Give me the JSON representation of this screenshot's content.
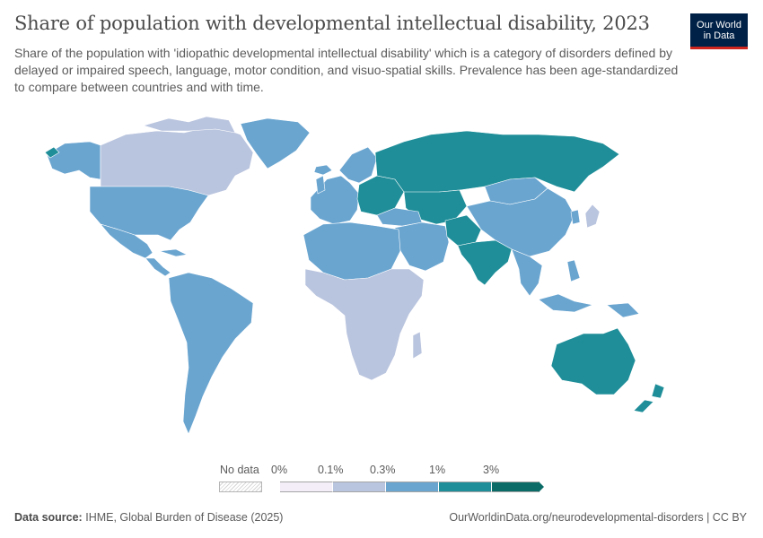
{
  "header": {
    "title": "Share of population with developmental intellectual disability, 2023",
    "subtitle": "Share of the population with 'idiopathic developmental intellectual disability' which is a category of disorders defined by delayed or impaired speech, language, motor condition, and visuo-spatial skills. Prevalence has been age-standardized to compare between countries and with time."
  },
  "logo": {
    "line1": "Our World",
    "line2": "in Data"
  },
  "legend": {
    "no_data_label": "No data",
    "ticks": [
      "0%",
      "0.1%",
      "0.3%",
      "1%",
      "3%"
    ],
    "colors": [
      "#f3eef8",
      "#b9c4de",
      "#6aa5d0",
      "#1f8e99",
      "#0b6b66"
    ]
  },
  "map_data": {
    "regions": [
      {
        "name": "Canada",
        "bin": "0.1-0.3%"
      },
      {
        "name": "United States",
        "bin": "0.3-1%"
      },
      {
        "name": "Greenland",
        "bin": "0.3-1%"
      },
      {
        "name": "Mexico",
        "bin": "0.3-1%"
      },
      {
        "name": "South America",
        "bin": "0.3-1%"
      },
      {
        "name": "Western Europe",
        "bin": "0.3-1%"
      },
      {
        "name": "Eastern Europe",
        "bin": "1-3%"
      },
      {
        "name": "Russia",
        "bin": "1-3%"
      },
      {
        "name": "Central Asia",
        "bin": "1-3%"
      },
      {
        "name": "China",
        "bin": "0.3-1%"
      },
      {
        "name": "Mongolia",
        "bin": "0.3-1%"
      },
      {
        "name": "India",
        "bin": "1-3%"
      },
      {
        "name": "Pakistan",
        "bin": "1-3%"
      },
      {
        "name": "Middle East",
        "bin": "0.3-1%"
      },
      {
        "name": "North Africa",
        "bin": "0.3-1%"
      },
      {
        "name": "Sub-Saharan Africa",
        "bin": "0.1-0.3%"
      },
      {
        "name": "Southeast Asia",
        "bin": "0.3-1%"
      },
      {
        "name": "Japan",
        "bin": "0.1-0.3%"
      },
      {
        "name": "Australia",
        "bin": "1-3%"
      },
      {
        "name": "New Zealand",
        "bin": "1-3%"
      }
    ]
  },
  "footer": {
    "source_label": "Data source:",
    "source_text": "IHME, Global Burden of Disease (2025)",
    "url_text": "OurWorldinData.org/neurodevelopmental-disorders | CC BY"
  }
}
